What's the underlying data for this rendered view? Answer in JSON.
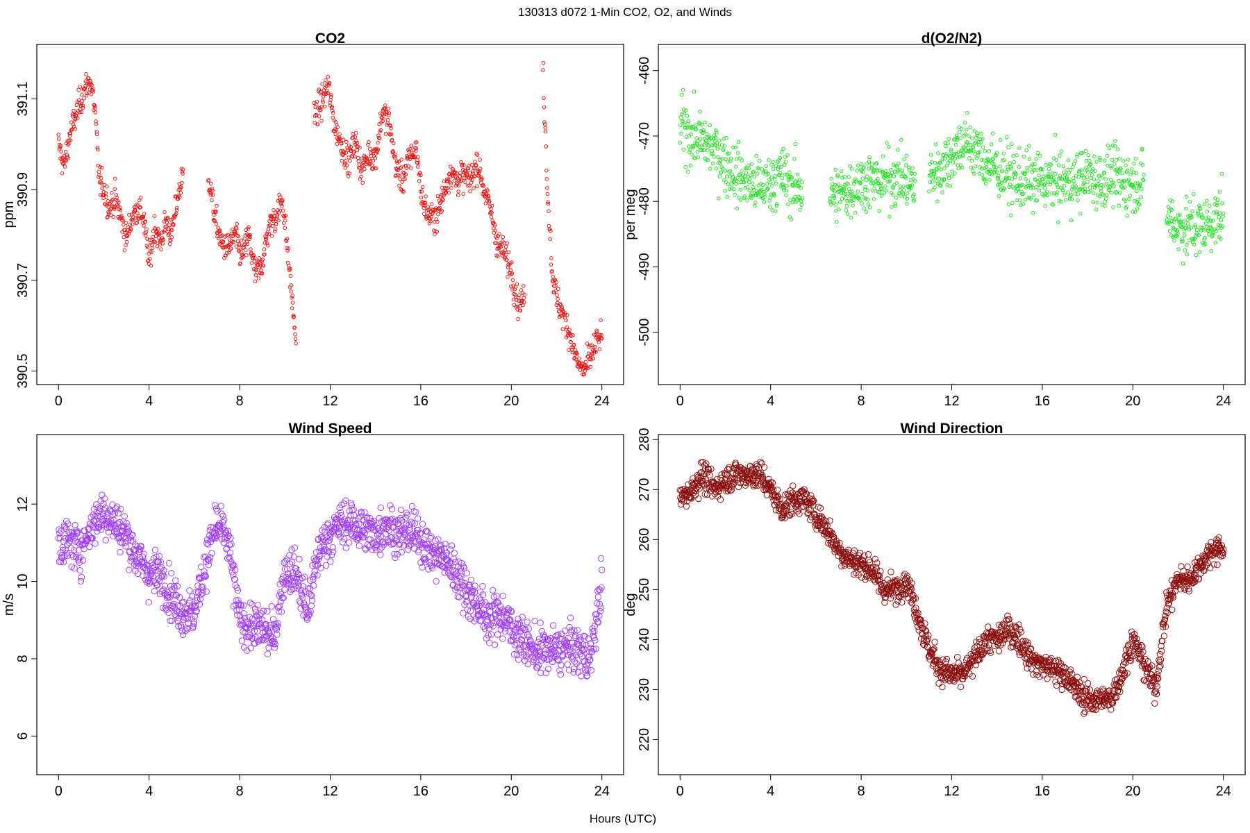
{
  "figure": {
    "suptitle": "130313   d072   1-Min CO2, O2, and Winds",
    "xlabel": "Hours (UTC)"
  },
  "chart_data": [
    {
      "type": "scatter",
      "title": "CO2",
      "ylabel": "ppm",
      "xlim": [
        -0.96,
        24.96
      ],
      "ylim": [
        390.47,
        391.22
      ],
      "xticks": [
        0,
        4,
        8,
        12,
        16,
        20,
        24
      ],
      "yticks": [
        390.5,
        390.7,
        390.9,
        391.1
      ],
      "ytick_labels": [
        "390.5",
        "390.7",
        "390.9",
        "391.1"
      ],
      "color": "#e81818",
      "marker_size": 2.3,
      "gaps": [
        [
          5.5,
          6.6
        ],
        [
          10.5,
          11.3
        ],
        [
          20.6,
          21.4
        ]
      ],
      "series": [
        {
          "x": [
            0,
            0.25,
            0.5,
            0.75,
            1,
            1.25,
            1.4,
            1.6,
            1.8,
            2,
            2.25,
            2.5,
            2.75,
            3,
            3.25,
            3.5,
            3.75,
            4,
            4.25,
            4.5,
            4.75,
            5,
            5.25,
            5.5,
            6.6,
            6.9,
            7.2,
            7.5,
            7.8,
            8.1,
            8.4,
            8.7,
            9,
            9.3,
            9.6,
            9.9,
            10.2,
            10.5,
            11.3,
            11.6,
            11.9,
            12.2,
            12.5,
            12.8,
            13.1,
            13.4,
            13.7,
            14,
            14.3,
            14.6,
            14.9,
            15.2,
            15.5,
            15.8,
            16.1,
            16.4,
            16.7,
            17,
            17.3,
            17.6,
            17.9,
            18.2,
            18.5,
            18.8,
            19.1,
            19.4,
            19.7,
            20,
            20.3,
            20.6,
            21.4,
            21.6,
            21.8,
            22,
            22.3,
            22.6,
            22.9,
            23.2,
            23.5,
            23.8
          ],
          "y": [
            391,
            390.95,
            391.02,
            391.06,
            391.1,
            391.13,
            391.14,
            391.08,
            390.92,
            390.9,
            390.86,
            390.88,
            390.84,
            390.79,
            390.84,
            390.86,
            390.84,
            390.74,
            390.82,
            390.78,
            390.83,
            390.8,
            390.88,
            390.93,
            390.94,
            390.84,
            390.78,
            390.77,
            390.8,
            390.75,
            390.8,
            390.71,
            390.74,
            390.82,
            390.84,
            390.88,
            390.72,
            390.56,
            391.06,
            391.09,
            391.13,
            391.04,
            391.0,
            390.96,
            391.01,
            390.94,
            390.98,
            390.97,
            391.07,
            391.05,
            390.95,
            390.92,
            390.97,
            390.99,
            390.87,
            390.84,
            390.84,
            390.89,
            390.94,
            390.92,
            390.93,
            390.92,
            390.96,
            390.9,
            390.85,
            390.78,
            390.76,
            390.72,
            390.65,
            390.66,
            391.17,
            390.9,
            390.72,
            390.66,
            390.62,
            390.58,
            390.52,
            390.5,
            390.53,
            390.57
          ],
          "noise_sd": 0.03
        }
      ]
    },
    {
      "type": "scatter",
      "title": "d(O2/N2)",
      "ylabel": "per meg",
      "xlim": [
        -0.96,
        24.96
      ],
      "ylim": [
        -508,
        -456
      ],
      "xticks": [
        0,
        4,
        8,
        12,
        16,
        20,
        24
      ],
      "yticks": [
        -500,
        -490,
        -480,
        -470,
        -460
      ],
      "ytick_labels": [
        "-500",
        "-490",
        "-480",
        "-470",
        "-460"
      ],
      "color": "#22e022",
      "marker_size": 2.3,
      "gaps": [
        [
          5.4,
          6.6
        ],
        [
          10.4,
          11.0
        ],
        [
          20.5,
          21.5
        ]
      ],
      "series": [
        {
          "x": [
            0,
            0.5,
            1,
            1.5,
            2,
            2.5,
            3,
            3.5,
            4,
            4.5,
            5,
            5.4,
            6.6,
            7,
            7.5,
            8,
            8.5,
            9,
            9.5,
            10,
            10.4,
            11,
            11.5,
            12,
            12.5,
            13,
            13.5,
            14,
            14.5,
            15,
            15.5,
            16,
            16.5,
            17,
            17.5,
            18,
            18.5,
            19,
            19.5,
            20,
            20.5,
            21.5,
            22,
            22.5,
            23,
            23.5,
            24
          ],
          "y": [
            -468,
            -470,
            -471,
            -472,
            -474,
            -476,
            -477,
            -478,
            -477,
            -476,
            -478,
            -478,
            -479,
            -479,
            -478,
            -477,
            -477,
            -477,
            -476,
            -477,
            -478,
            -476,
            -475,
            -473,
            -471,
            -472,
            -474,
            -475,
            -476,
            -477,
            -477,
            -477,
            -477,
            -477,
            -477,
            -476,
            -477,
            -476,
            -477,
            -477,
            -477,
            -482,
            -484,
            -484,
            -484,
            -483,
            -482
          ],
          "noise_sd": 4.2
        }
      ]
    },
    {
      "type": "scatter",
      "title": "Wind Speed",
      "ylabel": "m/s",
      "xlim": [
        -0.96,
        24.96
      ],
      "ylim": [
        5.0,
        13.8
      ],
      "xticks": [
        0,
        4,
        8,
        12,
        16,
        20,
        24
      ],
      "yticks": [
        6,
        8,
        10,
        12
      ],
      "ytick_labels": [
        "6",
        "8",
        "10",
        "12"
      ],
      "color": "#a040f0",
      "marker_size": 4.2,
      "gaps": [],
      "series": [
        {
          "x": [
            0,
            0.5,
            1,
            1.5,
            2,
            2.5,
            3,
            3.5,
            4,
            4.5,
            5,
            5.5,
            6,
            6.5,
            7,
            7.5,
            8,
            8.5,
            9,
            9.5,
            10,
            10.5,
            11,
            11.5,
            12,
            12.5,
            13,
            13.5,
            14,
            14.5,
            15,
            15.5,
            16,
            16.5,
            17,
            17.5,
            18,
            18.5,
            19,
            19.5,
            20,
            20.5,
            21,
            21.5,
            22,
            22.5,
            23,
            23.5,
            24
          ],
          "y": [
            11,
            11,
            10.8,
            11.5,
            11.8,
            11.5,
            11.2,
            10.6,
            10.2,
            10.2,
            9.6,
            9.2,
            9.2,
            10.5,
            11.5,
            11,
            9,
            8.8,
            8.8,
            8.5,
            10.3,
            10.2,
            9.2,
            10.8,
            11.2,
            11.5,
            11.5,
            11.3,
            11.2,
            11.5,
            11.2,
            11.3,
            11.1,
            10.7,
            10.6,
            10.3,
            9.8,
            9.4,
            9.0,
            9.2,
            8.8,
            8.5,
            8.2,
            8.2,
            8.2,
            8.3,
            8.2,
            8.0,
            10.0
          ],
          "noise_sd": 0.55
        }
      ]
    },
    {
      "type": "scatter",
      "title": "Wind Direction",
      "ylabel": "deg",
      "xlim": [
        -0.96,
        24.96
      ],
      "ylim": [
        213,
        281
      ],
      "xticks": [
        0,
        4,
        8,
        12,
        16,
        20,
        24
      ],
      "yticks": [
        220,
        230,
        240,
        250,
        260,
        270,
        280
      ],
      "ytick_labels": [
        "220",
        "230",
        "240",
        "250",
        "260",
        "270",
        "280"
      ],
      "color": "#8b0f0f",
      "marker_size": 4.2,
      "gaps": [],
      "series": [
        {
          "x": [
            0,
            0.5,
            1,
            1.5,
            2,
            2.5,
            3,
            3.5,
            4,
            4.5,
            5,
            5.5,
            6,
            6.5,
            7,
            7.5,
            8,
            8.5,
            9,
            9.5,
            10,
            10.5,
            11,
            11.5,
            12,
            12.5,
            13,
            13.5,
            14,
            14.5,
            15,
            15.5,
            16,
            16.5,
            17,
            17.5,
            18,
            18.5,
            19,
            19.5,
            20,
            20.5,
            21,
            21.5,
            22,
            22.5,
            23,
            23.5,
            24
          ],
          "y": [
            268,
            270,
            273,
            270,
            272,
            273,
            273,
            273,
            270,
            266,
            268,
            268,
            265,
            262,
            258,
            256,
            255,
            254,
            250,
            250,
            252,
            245,
            238,
            234,
            233,
            233,
            236,
            240,
            240,
            242,
            240,
            236,
            235,
            234,
            233,
            230,
            228,
            228,
            228,
            233,
            240,
            235,
            230,
            247,
            252,
            252,
            255,
            258,
            258
          ],
          "noise_sd": 2.6
        }
      ]
    }
  ]
}
